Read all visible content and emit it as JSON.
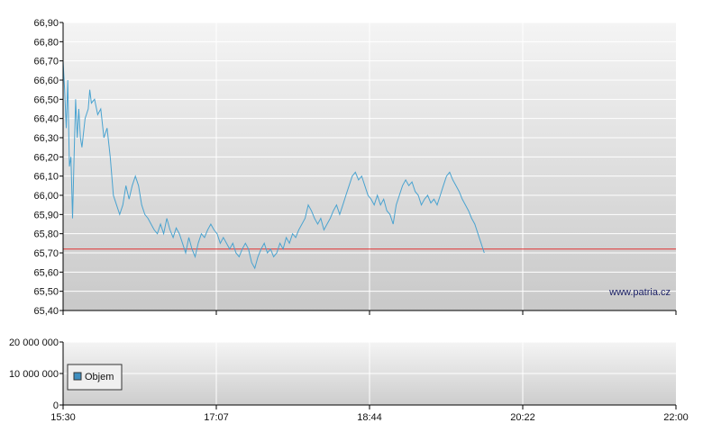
{
  "chart_data": [
    {
      "type": "line",
      "ylim": [
        65.4,
        66.9
      ],
      "y_ticks": [
        "66,90",
        "66,80",
        "66,70",
        "66,60",
        "66,50",
        "66,40",
        "66,30",
        "66,20",
        "66,10",
        "66,00",
        "65,90",
        "65,80",
        "65,70",
        "65,60",
        "65,50",
        "65,40"
      ],
      "x_ticks": [
        "15:30",
        "17:07",
        "18:44",
        "20:22",
        "22:00"
      ],
      "xlim_minutes": [
        930,
        1320
      ],
      "reference_line": {
        "value": 65.72,
        "color": "#e03030"
      },
      "watermark": "www.patria.cz",
      "grid": true,
      "series": [
        {
          "color": "#4aa3d0",
          "points": [
            [
              930,
              66.7
            ],
            [
              931,
              66.55
            ],
            [
              932,
              66.35
            ],
            [
              933,
              66.6
            ],
            [
              934,
              66.15
            ],
            [
              935,
              66.2
            ],
            [
              936,
              65.88
            ],
            [
              937,
              66.2
            ],
            [
              938,
              66.5
            ],
            [
              939,
              66.3
            ],
            [
              940,
              66.45
            ],
            [
              941,
              66.3
            ],
            [
              942,
              66.25
            ],
            [
              944,
              66.4
            ],
            [
              946,
              66.45
            ],
            [
              947,
              66.55
            ],
            [
              948,
              66.48
            ],
            [
              950,
              66.5
            ],
            [
              952,
              66.42
            ],
            [
              954,
              66.45
            ],
            [
              956,
              66.3
            ],
            [
              958,
              66.35
            ],
            [
              960,
              66.2
            ],
            [
              962,
              66.0
            ],
            [
              964,
              65.95
            ],
            [
              966,
              65.9
            ],
            [
              968,
              65.95
            ],
            [
              970,
              66.05
            ],
            [
              972,
              65.98
            ],
            [
              974,
              66.05
            ],
            [
              976,
              66.1
            ],
            [
              978,
              66.05
            ],
            [
              980,
              65.95
            ],
            [
              982,
              65.9
            ],
            [
              984,
              65.88
            ],
            [
              986,
              65.85
            ],
            [
              988,
              65.82
            ],
            [
              990,
              65.8
            ],
            [
              992,
              65.85
            ],
            [
              994,
              65.8
            ],
            [
              996,
              65.88
            ],
            [
              998,
              65.82
            ],
            [
              1000,
              65.78
            ],
            [
              1002,
              65.83
            ],
            [
              1004,
              65.8
            ],
            [
              1006,
              65.75
            ],
            [
              1008,
              65.7
            ],
            [
              1010,
              65.78
            ],
            [
              1012,
              65.72
            ],
            [
              1014,
              65.68
            ],
            [
              1016,
              65.75
            ],
            [
              1018,
              65.8
            ],
            [
              1020,
              65.78
            ],
            [
              1022,
              65.82
            ],
            [
              1024,
              65.85
            ],
            [
              1026,
              65.82
            ],
            [
              1028,
              65.8
            ],
            [
              1030,
              65.75
            ],
            [
              1032,
              65.78
            ],
            [
              1034,
              65.75
            ],
            [
              1036,
              65.72
            ],
            [
              1038,
              65.75
            ],
            [
              1040,
              65.7
            ],
            [
              1042,
              65.68
            ],
            [
              1044,
              65.72
            ],
            [
              1046,
              65.75
            ],
            [
              1048,
              65.72
            ],
            [
              1050,
              65.65
            ],
            [
              1052,
              65.62
            ],
            [
              1054,
              65.68
            ],
            [
              1056,
              65.72
            ],
            [
              1058,
              65.75
            ],
            [
              1060,
              65.7
            ],
            [
              1062,
              65.72
            ],
            [
              1064,
              65.68
            ],
            [
              1066,
              65.7
            ],
            [
              1068,
              65.75
            ],
            [
              1070,
              65.72
            ],
            [
              1072,
              65.78
            ],
            [
              1074,
              65.75
            ],
            [
              1076,
              65.8
            ],
            [
              1078,
              65.78
            ],
            [
              1080,
              65.82
            ],
            [
              1082,
              65.85
            ],
            [
              1084,
              65.88
            ],
            [
              1086,
              65.95
            ],
            [
              1088,
              65.92
            ],
            [
              1090,
              65.88
            ],
            [
              1092,
              65.85
            ],
            [
              1094,
              65.88
            ],
            [
              1096,
              65.82
            ],
            [
              1098,
              65.85
            ],
            [
              1100,
              65.88
            ],
            [
              1102,
              65.92
            ],
            [
              1104,
              65.95
            ],
            [
              1106,
              65.9
            ],
            [
              1108,
              65.95
            ],
            [
              1110,
              66.0
            ],
            [
              1112,
              66.05
            ],
            [
              1114,
              66.1
            ],
            [
              1116,
              66.12
            ],
            [
              1118,
              66.08
            ],
            [
              1120,
              66.1
            ],
            [
              1122,
              66.05
            ],
            [
              1124,
              66.0
            ],
            [
              1126,
              65.98
            ],
            [
              1128,
              65.95
            ],
            [
              1130,
              66.0
            ],
            [
              1132,
              65.95
            ],
            [
              1134,
              65.98
            ],
            [
              1136,
              65.92
            ],
            [
              1138,
              65.9
            ],
            [
              1140,
              65.85
            ],
            [
              1142,
              65.95
            ],
            [
              1144,
              66.0
            ],
            [
              1146,
              66.05
            ],
            [
              1148,
              66.08
            ],
            [
              1150,
              66.05
            ],
            [
              1152,
              66.07
            ],
            [
              1154,
              66.02
            ],
            [
              1156,
              66.0
            ],
            [
              1158,
              65.95
            ],
            [
              1160,
              65.98
            ],
            [
              1162,
              66.0
            ],
            [
              1164,
              65.96
            ],
            [
              1166,
              65.98
            ],
            [
              1168,
              65.95
            ],
            [
              1170,
              66.0
            ],
            [
              1172,
              66.05
            ],
            [
              1174,
              66.1
            ],
            [
              1176,
              66.12
            ],
            [
              1178,
              66.08
            ],
            [
              1180,
              66.05
            ],
            [
              1182,
              66.02
            ],
            [
              1184,
              65.98
            ],
            [
              1186,
              65.95
            ],
            [
              1188,
              65.92
            ],
            [
              1190,
              65.88
            ],
            [
              1192,
              65.85
            ],
            [
              1194,
              65.8
            ],
            [
              1196,
              65.75
            ],
            [
              1198,
              65.7
            ]
          ]
        }
      ]
    },
    {
      "type": "bar",
      "y_ticks": [
        "20 000 000",
        "10 000 000",
        "0"
      ],
      "ylim": [
        0,
        20000000
      ],
      "x_ticks": [
        "15:30",
        "17:07",
        "18:44",
        "20:22",
        "22:00"
      ],
      "xlim_minutes": [
        930,
        1320
      ],
      "legend": {
        "entries": [
          {
            "name": "Objem",
            "color": "#3f8fc0"
          }
        ],
        "position": "bottom-left"
      },
      "grid": true,
      "values": []
    }
  ]
}
